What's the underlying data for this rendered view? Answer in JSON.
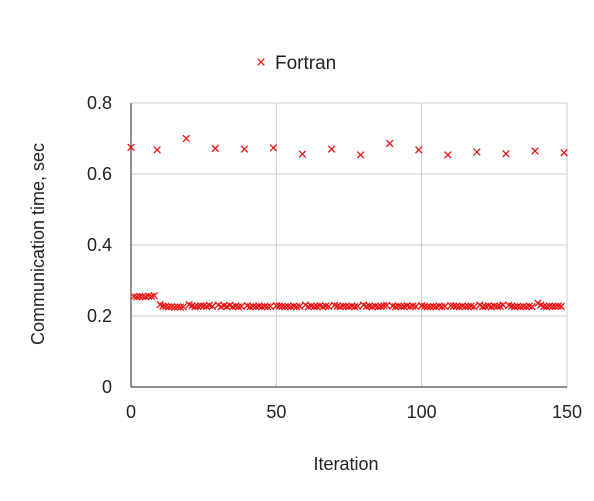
{
  "chart_data": {
    "type": "scatter",
    "title": "",
    "xlabel": "Iteration",
    "ylabel": "Communication time, sec",
    "xlim": [
      0,
      150
    ],
    "ylim": [
      0,
      0.8
    ],
    "xticks": [
      "0",
      "50",
      "100",
      "150"
    ],
    "yticks": [
      "0",
      "0.2",
      "0.4",
      "0.6",
      "0.8"
    ],
    "grid": true,
    "legend_position": "top-center",
    "series": [
      {
        "name": "Fortran",
        "color": "#ee1111",
        "marker": "x",
        "points": [
          [
            0,
            0.675
          ],
          [
            9,
            0.668
          ],
          [
            19,
            0.7
          ],
          [
            29,
            0.672
          ],
          [
            39,
            0.67
          ],
          [
            49,
            0.674
          ],
          [
            59,
            0.656
          ],
          [
            69,
            0.67
          ],
          [
            79,
            0.654
          ],
          [
            89,
            0.686
          ],
          [
            99,
            0.668
          ],
          [
            109,
            0.654
          ],
          [
            119,
            0.662
          ],
          [
            129,
            0.657
          ],
          [
            139,
            0.665
          ],
          [
            149,
            0.66
          ],
          [
            1,
            0.255
          ],
          [
            2,
            0.254
          ],
          [
            3,
            0.255
          ],
          [
            4,
            0.255
          ],
          [
            5,
            0.254
          ],
          [
            6,
            0.256
          ],
          [
            7,
            0.255
          ],
          [
            8,
            0.257
          ],
          [
            10,
            0.232
          ],
          [
            11,
            0.228
          ],
          [
            12,
            0.227
          ],
          [
            13,
            0.226
          ],
          [
            14,
            0.226
          ],
          [
            15,
            0.225
          ],
          [
            16,
            0.226
          ],
          [
            17,
            0.225
          ],
          [
            18,
            0.226
          ],
          [
            20,
            0.232
          ],
          [
            21,
            0.229
          ],
          [
            22,
            0.226
          ],
          [
            23,
            0.227
          ],
          [
            24,
            0.229
          ],
          [
            25,
            0.228
          ],
          [
            26,
            0.227
          ],
          [
            27,
            0.23
          ],
          [
            28,
            0.227
          ],
          [
            30,
            0.231
          ],
          [
            31,
            0.226
          ],
          [
            32,
            0.229
          ],
          [
            33,
            0.227
          ],
          [
            34,
            0.23
          ],
          [
            35,
            0.226
          ],
          [
            36,
            0.228
          ],
          [
            37,
            0.226
          ],
          [
            38,
            0.227
          ],
          [
            40,
            0.229
          ],
          [
            41,
            0.226
          ],
          [
            42,
            0.227
          ],
          [
            43,
            0.226
          ],
          [
            44,
            0.228
          ],
          [
            45,
            0.226
          ],
          [
            46,
            0.227
          ],
          [
            47,
            0.226
          ],
          [
            48,
            0.227
          ],
          [
            50,
            0.229
          ],
          [
            51,
            0.228
          ],
          [
            52,
            0.227
          ],
          [
            53,
            0.226
          ],
          [
            54,
            0.227
          ],
          [
            55,
            0.226
          ],
          [
            56,
            0.228
          ],
          [
            57,
            0.226
          ],
          [
            58,
            0.227
          ],
          [
            60,
            0.231
          ],
          [
            61,
            0.226
          ],
          [
            62,
            0.228
          ],
          [
            63,
            0.226
          ],
          [
            64,
            0.227
          ],
          [
            65,
            0.229
          ],
          [
            66,
            0.226
          ],
          [
            67,
            0.228
          ],
          [
            68,
            0.227
          ],
          [
            70,
            0.23
          ],
          [
            71,
            0.228
          ],
          [
            72,
            0.226
          ],
          [
            73,
            0.228
          ],
          [
            74,
            0.227
          ],
          [
            75,
            0.226
          ],
          [
            76,
            0.228
          ],
          [
            77,
            0.226
          ],
          [
            78,
            0.227
          ],
          [
            80,
            0.231
          ],
          [
            81,
            0.227
          ],
          [
            82,
            0.228
          ],
          [
            83,
            0.226
          ],
          [
            84,
            0.228
          ],
          [
            85,
            0.226
          ],
          [
            86,
            0.227
          ],
          [
            87,
            0.229
          ],
          [
            88,
            0.23
          ],
          [
            90,
            0.228
          ],
          [
            91,
            0.226
          ],
          [
            92,
            0.228
          ],
          [
            93,
            0.227
          ],
          [
            94,
            0.227
          ],
          [
            95,
            0.229
          ],
          [
            96,
            0.226
          ],
          [
            97,
            0.228
          ],
          [
            98,
            0.227
          ],
          [
            100,
            0.229
          ],
          [
            101,
            0.227
          ],
          [
            102,
            0.226
          ],
          [
            103,
            0.226
          ],
          [
            104,
            0.227
          ],
          [
            105,
            0.226
          ],
          [
            106,
            0.228
          ],
          [
            107,
            0.226
          ],
          [
            108,
            0.227
          ],
          [
            110,
            0.229
          ],
          [
            111,
            0.228
          ],
          [
            112,
            0.227
          ],
          [
            113,
            0.226
          ],
          [
            114,
            0.228
          ],
          [
            115,
            0.226
          ],
          [
            116,
            0.227
          ],
          [
            117,
            0.228
          ],
          [
            118,
            0.226
          ],
          [
            120,
            0.231
          ],
          [
            121,
            0.226
          ],
          [
            122,
            0.227
          ],
          [
            123,
            0.229
          ],
          [
            124,
            0.226
          ],
          [
            125,
            0.228
          ],
          [
            126,
            0.227
          ],
          [
            127,
            0.227
          ],
          [
            128,
            0.231
          ],
          [
            130,
            0.23
          ],
          [
            131,
            0.228
          ],
          [
            132,
            0.226
          ],
          [
            133,
            0.227
          ],
          [
            134,
            0.226
          ],
          [
            135,
            0.227
          ],
          [
            136,
            0.226
          ],
          [
            137,
            0.228
          ],
          [
            138,
            0.226
          ],
          [
            140,
            0.236
          ],
          [
            141,
            0.231
          ],
          [
            142,
            0.227
          ],
          [
            143,
            0.226
          ],
          [
            144,
            0.228
          ],
          [
            145,
            0.227
          ],
          [
            146,
            0.227
          ],
          [
            147,
            0.228
          ],
          [
            148,
            0.227
          ]
        ]
      }
    ]
  }
}
